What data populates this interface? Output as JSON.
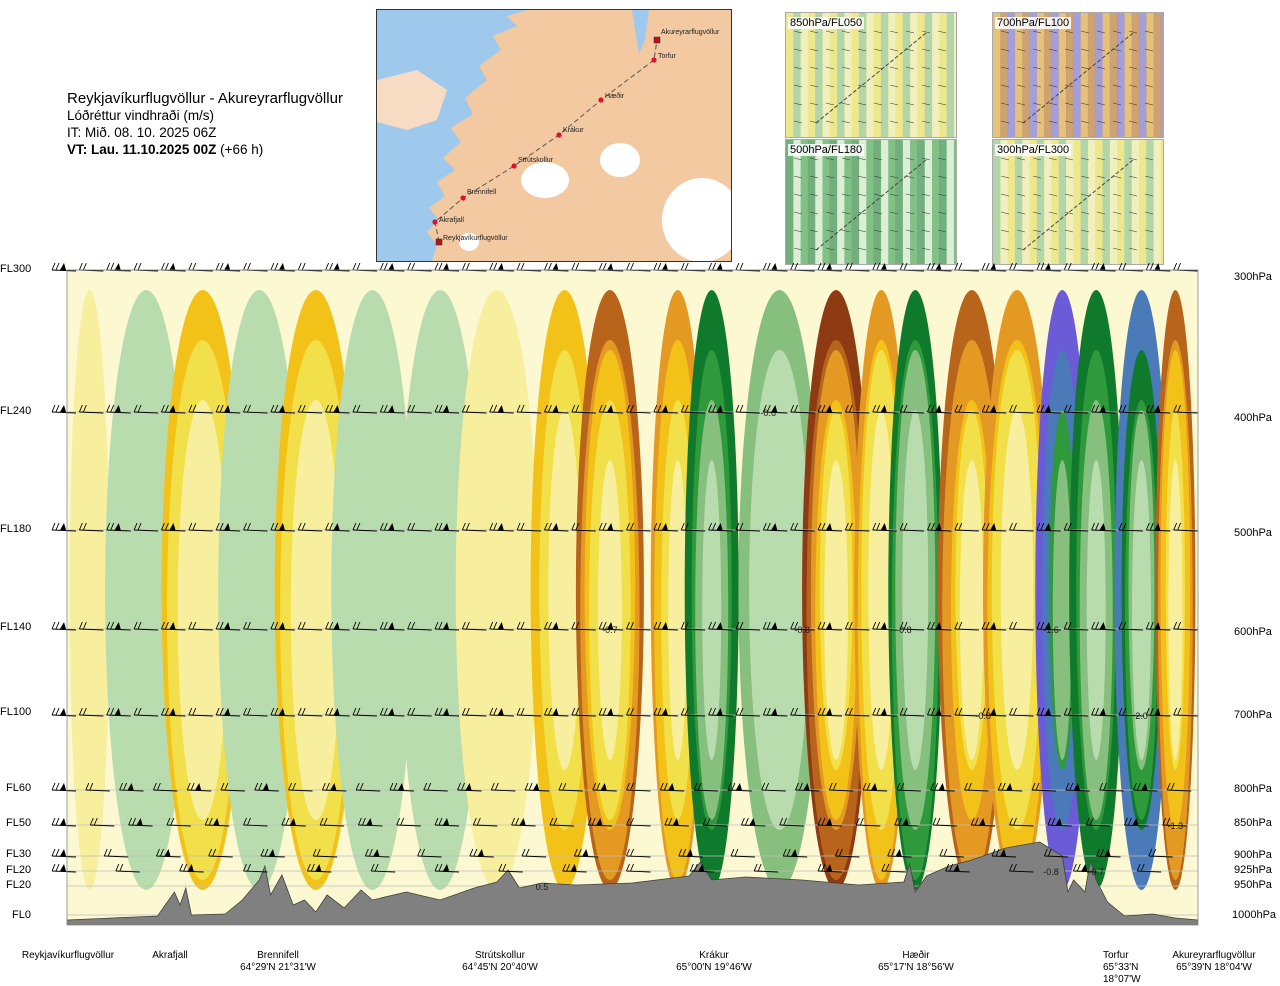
{
  "header": {
    "title": "Reykjavíkurflugvöllur - Akureyrarflugvöllur",
    "subtitle": "Lóðréttur vindhraði (m/s)",
    "issue_time": "IT: Mið. 08. 10. 2025 06Z",
    "valid_prefix": "VT: Lau. 11.10.2025 00Z",
    "valid_suffix": "(+66 h)"
  },
  "thumbnails": [
    {
      "label": "850hPa/FL050"
    },
    {
      "label": "700hPa/FL100"
    },
    {
      "label": "500hPa/FL180"
    },
    {
      "label": "300hPa/FL300"
    }
  ],
  "route_map": {
    "waypoints": [
      "Reykjavíkurflugvöllur",
      "Akrafjall",
      "Brennifell",
      "Strútskollur",
      "Krákur",
      "Hæðir",
      "Torfur",
      "Akureyrarflugvöllur"
    ],
    "colors": {
      "land": "#f3c9a2",
      "sea": "#9fc9ec",
      "ice": "#ffffff",
      "route": "#555555",
      "point": "#e0102a"
    }
  },
  "chart_data": {
    "type": "heatmap",
    "variable": "Lóðréttur vindhraði (m/s)",
    "y_levels_fl": [
      "FL300",
      "FL240",
      "FL180",
      "FL140",
      "FL100",
      "FL60",
      "FL50",
      "FL30",
      "FL20",
      "FL20",
      "FL0"
    ],
    "y_levels_hpa": [
      "300hPa",
      "400hPa",
      "500hPa",
      "600hPa",
      "700hPa",
      "800hPa",
      "850hPa",
      "900hPa",
      "925hPa",
      "950hPa",
      "1000hPa"
    ],
    "x_waypoints": [
      {
        "name": "Reykjavíkurflugvöllur",
        "coord": ""
      },
      {
        "name": "Akrafjall",
        "coord": ""
      },
      {
        "name": "Brennifell",
        "coord": "64°29'N 21°31'W"
      },
      {
        "name": "Strútskollur",
        "coord": "64°45'N 20°40'W"
      },
      {
        "name": "Krákur",
        "coord": "65°00'N 19°46'W"
      },
      {
        "name": "Hæðir",
        "coord": "65°17'N 18°56'W"
      },
      {
        "name": "Torfur",
        "coord": "65°33'N 18°07'W"
      },
      {
        "name": "Akureyrarflugvöllur",
        "coord": "65°39'N 18°04'W"
      }
    ],
    "contour_labels": [
      {
        "text": "-0.6",
        "x": 0.62,
        "level": "400hPa"
      },
      {
        "text": "-0.7",
        "x": 0.48,
        "level": "600hPa"
      },
      {
        "text": "-0.8",
        "x": 0.65,
        "level": "600hPa"
      },
      {
        "text": "-0.8",
        "x": 0.74,
        "level": "600hPa"
      },
      {
        "text": "-1.6",
        "x": 0.87,
        "level": "600hPa"
      },
      {
        "text": "-0.8",
        "x": 0.81,
        "level": "700hPa"
      },
      {
        "text": "2.0",
        "x": 0.95,
        "level": "700hPa"
      },
      {
        "text": "-1.3",
        "x": 0.98,
        "level": "850hPa"
      },
      {
        "text": "0.5",
        "x": 0.42,
        "level": "950hPa"
      },
      {
        "text": "-0.8",
        "x": 0.87,
        "level": "925hPa"
      },
      {
        "text": "-0.7",
        "x": 0.91,
        "level": "925hPa"
      }
    ],
    "bands": [
      {
        "x": 0.02,
        "v": 0.1
      },
      {
        "x": 0.07,
        "v": -0.1
      },
      {
        "x": 0.12,
        "v": 0.25
      },
      {
        "x": 0.17,
        "v": -0.12
      },
      {
        "x": 0.22,
        "v": 0.25
      },
      {
        "x": 0.27,
        "v": -0.05
      },
      {
        "x": 0.33,
        "v": -0.08
      },
      {
        "x": 0.38,
        "v": 0.05
      },
      {
        "x": 0.44,
        "v": 0.35
      },
      {
        "x": 0.48,
        "v": 0.6
      },
      {
        "x": 0.54,
        "v": 0.5
      },
      {
        "x": 0.57,
        "v": -0.6
      },
      {
        "x": 0.63,
        "v": -0.2
      },
      {
        "x": 0.68,
        "v": 0.85
      },
      {
        "x": 0.72,
        "v": 0.45
      },
      {
        "x": 0.75,
        "v": -0.45
      },
      {
        "x": 0.8,
        "v": 0.75
      },
      {
        "x": 0.84,
        "v": 0.4
      },
      {
        "x": 0.88,
        "v": -1.6
      },
      {
        "x": 0.91,
        "v": -0.55
      },
      {
        "x": 0.95,
        "v": -0.9
      },
      {
        "x": 0.98,
        "v": 0.7
      }
    ],
    "colorscale": [
      {
        "min": -9,
        "max": -0.9,
        "color": "#6b5bd6"
      },
      {
        "min": -0.9,
        "max": -0.6,
        "color": "#4a7ab8"
      },
      {
        "min": -0.6,
        "max": -0.4,
        "color": "#107a2c"
      },
      {
        "min": -0.4,
        "max": -0.25,
        "color": "#2e9a3c"
      },
      {
        "min": -0.25,
        "max": -0.12,
        "color": "#86bf7e"
      },
      {
        "min": -0.12,
        "max": -0.04,
        "color": "#b9dcae"
      },
      {
        "min": -0.04,
        "max": 0.0,
        "color": "#d3ecce"
      },
      {
        "min": 0.0,
        "max": 0.04,
        "color": "#fbf8d2"
      },
      {
        "min": 0.04,
        "max": 0.12,
        "color": "#f7ef9e"
      },
      {
        "min": 0.12,
        "max": 0.25,
        "color": "#f1e04a"
      },
      {
        "min": 0.25,
        "max": 0.4,
        "color": "#f2c219"
      },
      {
        "min": 0.4,
        "max": 0.6,
        "color": "#e49a22"
      },
      {
        "min": 0.6,
        "max": 0.8,
        "color": "#b8641a"
      },
      {
        "min": 0.8,
        "max": 9,
        "color": "#8e3a12"
      }
    ],
    "terrain_color": "#808080",
    "grid": true
  }
}
